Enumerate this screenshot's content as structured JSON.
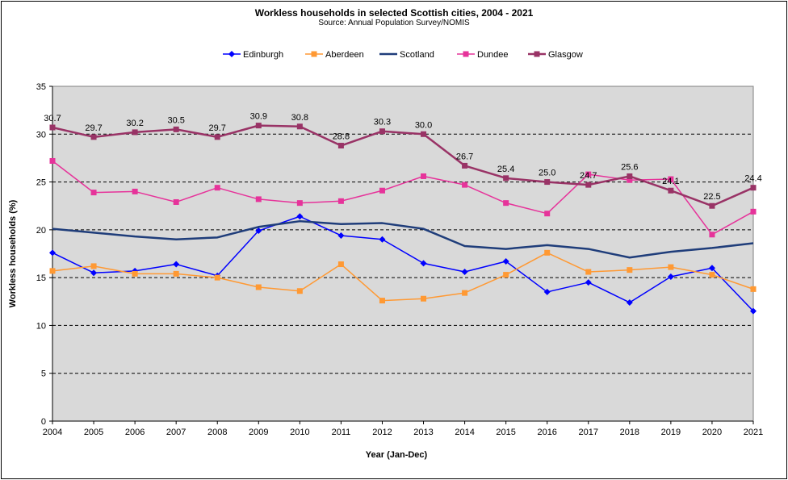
{
  "chart_data": {
    "type": "line",
    "title": "Workless households in selected Scottish cities, 2004 - 2021",
    "subtitle": "Source: Annual Population Survey/NOMIS",
    "xlabel": "Year (Jan-Dec)",
    "ylabel": "Workless  households (%)",
    "ylim": [
      0,
      35
    ],
    "yticks": [
      0,
      5,
      10,
      15,
      20,
      25,
      30,
      35
    ],
    "grid": "horizontal dashed",
    "legend_position": "top",
    "categories": [
      "2004",
      "2005",
      "2006",
      "2007",
      "2008",
      "2009",
      "2010",
      "2011",
      "2012",
      "2013",
      "2014",
      "2015",
      "2016",
      "2017",
      "2018",
      "2019",
      "2020",
      "2021"
    ],
    "series": [
      {
        "name": "Edinburgh",
        "color": "#0000ff",
        "marker": "diamond",
        "width": 1.5,
        "values": [
          17.6,
          15.5,
          15.7,
          16.4,
          15.2,
          19.9,
          21.4,
          19.4,
          19.0,
          16.5,
          15.6,
          16.7,
          13.5,
          14.5,
          12.4,
          15.1,
          16.0,
          11.5
        ]
      },
      {
        "name": "Aberdeen",
        "color": "#ff9933",
        "marker": "square",
        "width": 1.5,
        "values": [
          15.7,
          16.2,
          15.4,
          15.4,
          15.0,
          14.0,
          13.6,
          16.4,
          12.6,
          12.8,
          13.4,
          15.3,
          17.6,
          15.6,
          15.8,
          16.1,
          15.3,
          13.8
        ]
      },
      {
        "name": "Scotland",
        "color": "#1f3d7a",
        "marker": "none",
        "width": 2.5,
        "values": [
          20.1,
          19.7,
          19.3,
          19.0,
          19.2,
          20.3,
          20.9,
          20.6,
          20.7,
          20.1,
          18.3,
          18.0,
          18.4,
          18.0,
          17.1,
          17.7,
          18.1,
          18.6
        ]
      },
      {
        "name": "Dundee",
        "color": "#e6339a",
        "marker": "square",
        "width": 1.5,
        "values": [
          27.2,
          23.9,
          24.0,
          22.9,
          24.4,
          23.2,
          22.8,
          23.0,
          24.1,
          25.6,
          24.7,
          22.8,
          21.7,
          25.8,
          25.2,
          25.3,
          19.5,
          21.9
        ]
      },
      {
        "name": "Glasgow",
        "color": "#993366",
        "marker": "square",
        "width": 2.5,
        "values": [
          30.7,
          29.7,
          30.2,
          30.5,
          29.7,
          30.9,
          30.8,
          28.8,
          30.3,
          30.0,
          26.7,
          25.4,
          25.0,
          24.7,
          25.6,
          24.1,
          22.5,
          24.4
        ]
      }
    ],
    "data_labels": {
      "series": "Glasgow",
      "labels": [
        {
          "index": 0,
          "text": "30.7"
        },
        {
          "index": 1,
          "text": "29.7"
        },
        {
          "index": 2,
          "text": "30.2"
        },
        {
          "index": 3,
          "text": "30.5"
        },
        {
          "index": 4,
          "text": "29.7"
        },
        {
          "index": 5,
          "text": "30.9"
        },
        {
          "index": 6,
          "text": "30.8"
        },
        {
          "index": 7,
          "text": "28.8"
        },
        {
          "index": 8,
          "text": "30.3"
        },
        {
          "index": 9,
          "text": "30.0"
        },
        {
          "index": 10,
          "text": "26.7"
        },
        {
          "index": 11,
          "text": "25.4"
        },
        {
          "index": 12,
          "text": "25.0"
        },
        {
          "index": 13,
          "text": "24.7"
        },
        {
          "index": 14,
          "text": "25.6"
        },
        {
          "index": 15,
          "text": "24.1"
        },
        {
          "index": 16,
          "text": "22.5"
        },
        {
          "index": 17,
          "text": "24.4"
        }
      ]
    }
  }
}
